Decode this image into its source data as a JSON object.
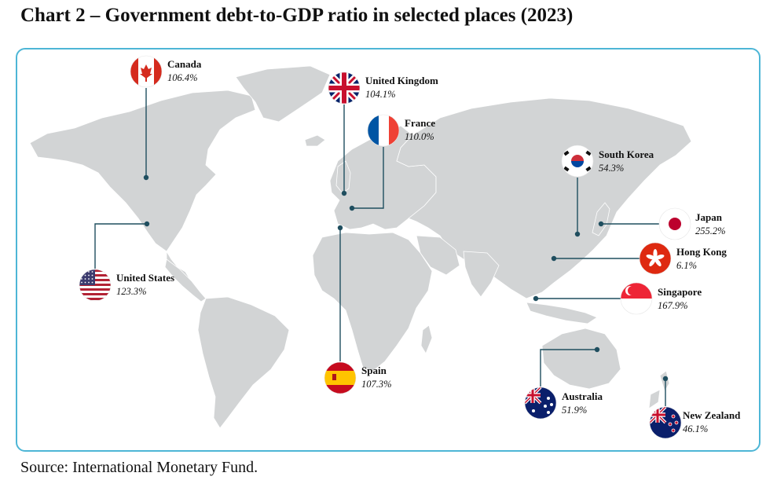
{
  "title": "Chart 2 – Government debt-to-GDP ratio in selected places (2023)",
  "source": "Source: International Monetary Fund.",
  "colors": {
    "frame": "#4db6d6",
    "land": "#d2d4d5",
    "leader": "#1f4e5f",
    "dot": "#1f4e5f"
  },
  "chart_data": {
    "type": "map",
    "title": "Chart 2 – Government debt-to-GDP ratio in selected places (2023)",
    "unit": "%",
    "entries": [
      {
        "key": "canada",
        "name": "Canada",
        "value": 106.4,
        "value_label": "106.4%",
        "flag": "canada"
      },
      {
        "key": "uk",
        "name": "United Kingdom",
        "value": 104.1,
        "value_label": "104.1%",
        "flag": "uk"
      },
      {
        "key": "france",
        "name": "France",
        "value": 110.0,
        "value_label": "110.0%",
        "flag": "france"
      },
      {
        "key": "skorea",
        "name": "South Korea",
        "value": 54.3,
        "value_label": "54.3%",
        "flag": "south-korea"
      },
      {
        "key": "japan",
        "name": "Japan",
        "value": 255.2,
        "value_label": "255.2%",
        "flag": "japan"
      },
      {
        "key": "hk",
        "name": "Hong Kong",
        "value": 6.1,
        "value_label": "6.1%",
        "flag": "hong-kong"
      },
      {
        "key": "sg",
        "name": "Singapore",
        "value": 167.9,
        "value_label": "167.9%",
        "flag": "singapore"
      },
      {
        "key": "us",
        "name": "United States",
        "value": 123.3,
        "value_label": "123.3%",
        "flag": "usa"
      },
      {
        "key": "spain",
        "name": "Spain",
        "value": 107.3,
        "value_label": "107.3%",
        "flag": "spain"
      },
      {
        "key": "au",
        "name": "Australia",
        "value": 51.9,
        "value_label": "51.9%",
        "flag": "australia"
      },
      {
        "key": "nz",
        "name": "New Zealand",
        "value": 46.1,
        "value_label": "46.1%",
        "flag": "new-zealand"
      }
    ]
  }
}
